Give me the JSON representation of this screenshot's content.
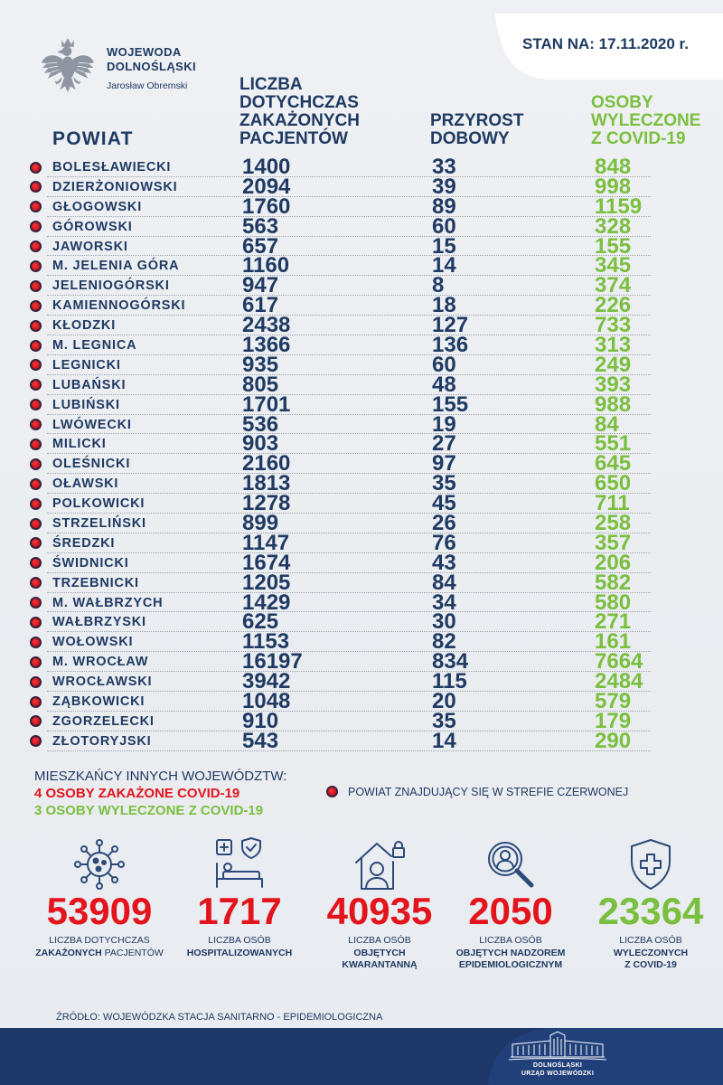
{
  "header": {
    "org_line1": "WOJEWODA",
    "org_line2": "DOLNOŚLĄSKI",
    "official": "Jarosław Obremski",
    "date_label": "STAN NA: 17.11.2020 r.",
    "emblem_icon": "polish-eagle-icon"
  },
  "table": {
    "columns": {
      "powiat": "POWIAT",
      "infected": [
        "LICZBA",
        "DOTYCHCZAS",
        "ZAKAŻONYCH",
        "PACJENTÓW"
      ],
      "daily": [
        "PRZYROST",
        "DOBOWY"
      ],
      "recovered": [
        "OSOBY",
        "WYLECZONE",
        "Z COVID-19"
      ]
    },
    "rows": [
      {
        "powiat": "BOLESŁAWIECKI",
        "infected": 1400,
        "daily": 33,
        "recovered": 848,
        "red_zone": true
      },
      {
        "powiat": "DZIERŻONIOWSKI",
        "infected": 2094,
        "daily": 39,
        "recovered": 998,
        "red_zone": true
      },
      {
        "powiat": "GŁOGOWSKI",
        "infected": 1760,
        "daily": 89,
        "recovered": 1159,
        "red_zone": true
      },
      {
        "powiat": "GÓROWSKI",
        "infected": 563,
        "daily": 60,
        "recovered": 328,
        "red_zone": true
      },
      {
        "powiat": "JAWORSKI",
        "infected": 657,
        "daily": 15,
        "recovered": 155,
        "red_zone": true
      },
      {
        "powiat": "M. JELENIA GÓRA",
        "infected": 1160,
        "daily": 14,
        "recovered": 345,
        "red_zone": true
      },
      {
        "powiat": "JELENIOGÓRSKI",
        "infected": 947,
        "daily": 8,
        "recovered": 374,
        "red_zone": true
      },
      {
        "powiat": "KAMIENNOGÓRSKI",
        "infected": 617,
        "daily": 18,
        "recovered": 226,
        "red_zone": true
      },
      {
        "powiat": "KŁODZKI",
        "infected": 2438,
        "daily": 127,
        "recovered": 733,
        "red_zone": true
      },
      {
        "powiat": "M. LEGNICA",
        "infected": 1366,
        "daily": 136,
        "recovered": 313,
        "red_zone": true
      },
      {
        "powiat": "LEGNICKI",
        "infected": 935,
        "daily": 60,
        "recovered": 249,
        "red_zone": true
      },
      {
        "powiat": "LUBAŃSKI",
        "infected": 805,
        "daily": 48,
        "recovered": 393,
        "red_zone": true
      },
      {
        "powiat": "LUBIŃSKI",
        "infected": 1701,
        "daily": 155,
        "recovered": 988,
        "red_zone": true
      },
      {
        "powiat": "LWÓWECKI",
        "infected": 536,
        "daily": 19,
        "recovered": 84,
        "red_zone": true
      },
      {
        "powiat": "MILICKI",
        "infected": 903,
        "daily": 27,
        "recovered": 551,
        "red_zone": true
      },
      {
        "powiat": "OLEŚNICKI",
        "infected": 2160,
        "daily": 97,
        "recovered": 645,
        "red_zone": true
      },
      {
        "powiat": "OŁAWSKI",
        "infected": 1813,
        "daily": 35,
        "recovered": 650,
        "red_zone": true
      },
      {
        "powiat": "POLKOWICKI",
        "infected": 1278,
        "daily": 45,
        "recovered": 711,
        "red_zone": true
      },
      {
        "powiat": "STRZELIŃSKI",
        "infected": 899,
        "daily": 26,
        "recovered": 258,
        "red_zone": true
      },
      {
        "powiat": "ŚREDZKI",
        "infected": 1147,
        "daily": 76,
        "recovered": 357,
        "red_zone": true
      },
      {
        "powiat": "ŚWIDNICKI",
        "infected": 1674,
        "daily": 43,
        "recovered": 206,
        "red_zone": true
      },
      {
        "powiat": "TRZEBNICKI",
        "infected": 1205,
        "daily": 84,
        "recovered": 582,
        "red_zone": true
      },
      {
        "powiat": "M. WAŁBRZYCH",
        "infected": 1429,
        "daily": 34,
        "recovered": 580,
        "red_zone": true
      },
      {
        "powiat": "WAŁBRZYSKI",
        "infected": 625,
        "daily": 30,
        "recovered": 271,
        "red_zone": true
      },
      {
        "powiat": "WOŁOWSKI",
        "infected": 1153,
        "daily": 82,
        "recovered": 161,
        "red_zone": true
      },
      {
        "powiat": "M. WROCŁAW",
        "infected": 16197,
        "daily": 834,
        "recovered": 7664,
        "red_zone": true
      },
      {
        "powiat": "WROCŁAWSKI",
        "infected": 3942,
        "daily": 115,
        "recovered": 2484,
        "red_zone": true
      },
      {
        "powiat": "ZĄBKOWICKI",
        "infected": 1048,
        "daily": 20,
        "recovered": 579,
        "red_zone": true
      },
      {
        "powiat": "ZGORZELECKI",
        "infected": 910,
        "daily": 35,
        "recovered": 179,
        "red_zone": true
      },
      {
        "powiat": "ZŁOTORYJSKI",
        "infected": 543,
        "daily": 14,
        "recovered": 290,
        "red_zone": true
      }
    ]
  },
  "other_voivodeships": {
    "title": "MIESZKAŃCY INNYCH WOJEWÓDZTW:",
    "infected": "4 OSOBY ZAKAŻONE COVID-19",
    "recovered": "3 OSOBY WYLECZONE Z COVID-19"
  },
  "legend": {
    "red_zone": "POWIAT ZNAJDUJĄCY SIĘ W STREFIE CZERWONEJ"
  },
  "totals": {
    "infected": {
      "icon": "virus-icon",
      "value": "53909",
      "caption_line1": "LICZBA DOTYCHCZAS",
      "caption_bold": [
        "ZAKAŻONYCH"
      ],
      "caption_rest": "PACJENTÓW"
    },
    "hospitalized": {
      "icon": "hospital-bed-icon",
      "value": "1717",
      "caption_line1": "LICZBA OSÓB",
      "caption_bold": [
        "HOSPITALIZOWANYCH"
      ]
    },
    "quarantine": {
      "icon": "house-person-lock-icon",
      "value": "40935",
      "caption_line1": "LICZBA OSÓB",
      "caption_bold": [
        "OBJĘTYCH",
        "KWARANTANNĄ"
      ]
    },
    "supervision": {
      "icon": "magnifier-person-icon",
      "value": "2050",
      "caption_line1": "LICZBA OSÓB",
      "caption_bold": [
        "OBJĘTYCH NADZOREM",
        "EPIDEMIOLOGICZNYM"
      ]
    },
    "recovered": {
      "icon": "shield-cross-icon",
      "value": "23364",
      "caption_line1": "LICZBA OSÓB",
      "caption_bold": [
        "WYLECZONYCH",
        "Z COVID-19"
      ]
    }
  },
  "source": "ŹRÓDŁO: WOJEWÓDZKA STACJA SANITARNO - EPIDEMIOLOGICZNA",
  "footer": {
    "logo_icon": "office-building-icon",
    "logo_line1": "DOLNOŚLĄSKI",
    "logo_line2": "URZĄD WOJEWÓDZKI"
  },
  "colors": {
    "navy": "#1f3a63",
    "red": "#e3141c",
    "green": "#7abf3f",
    "red_zone_dot": "#d3131b",
    "footer": "#1d3868"
  }
}
